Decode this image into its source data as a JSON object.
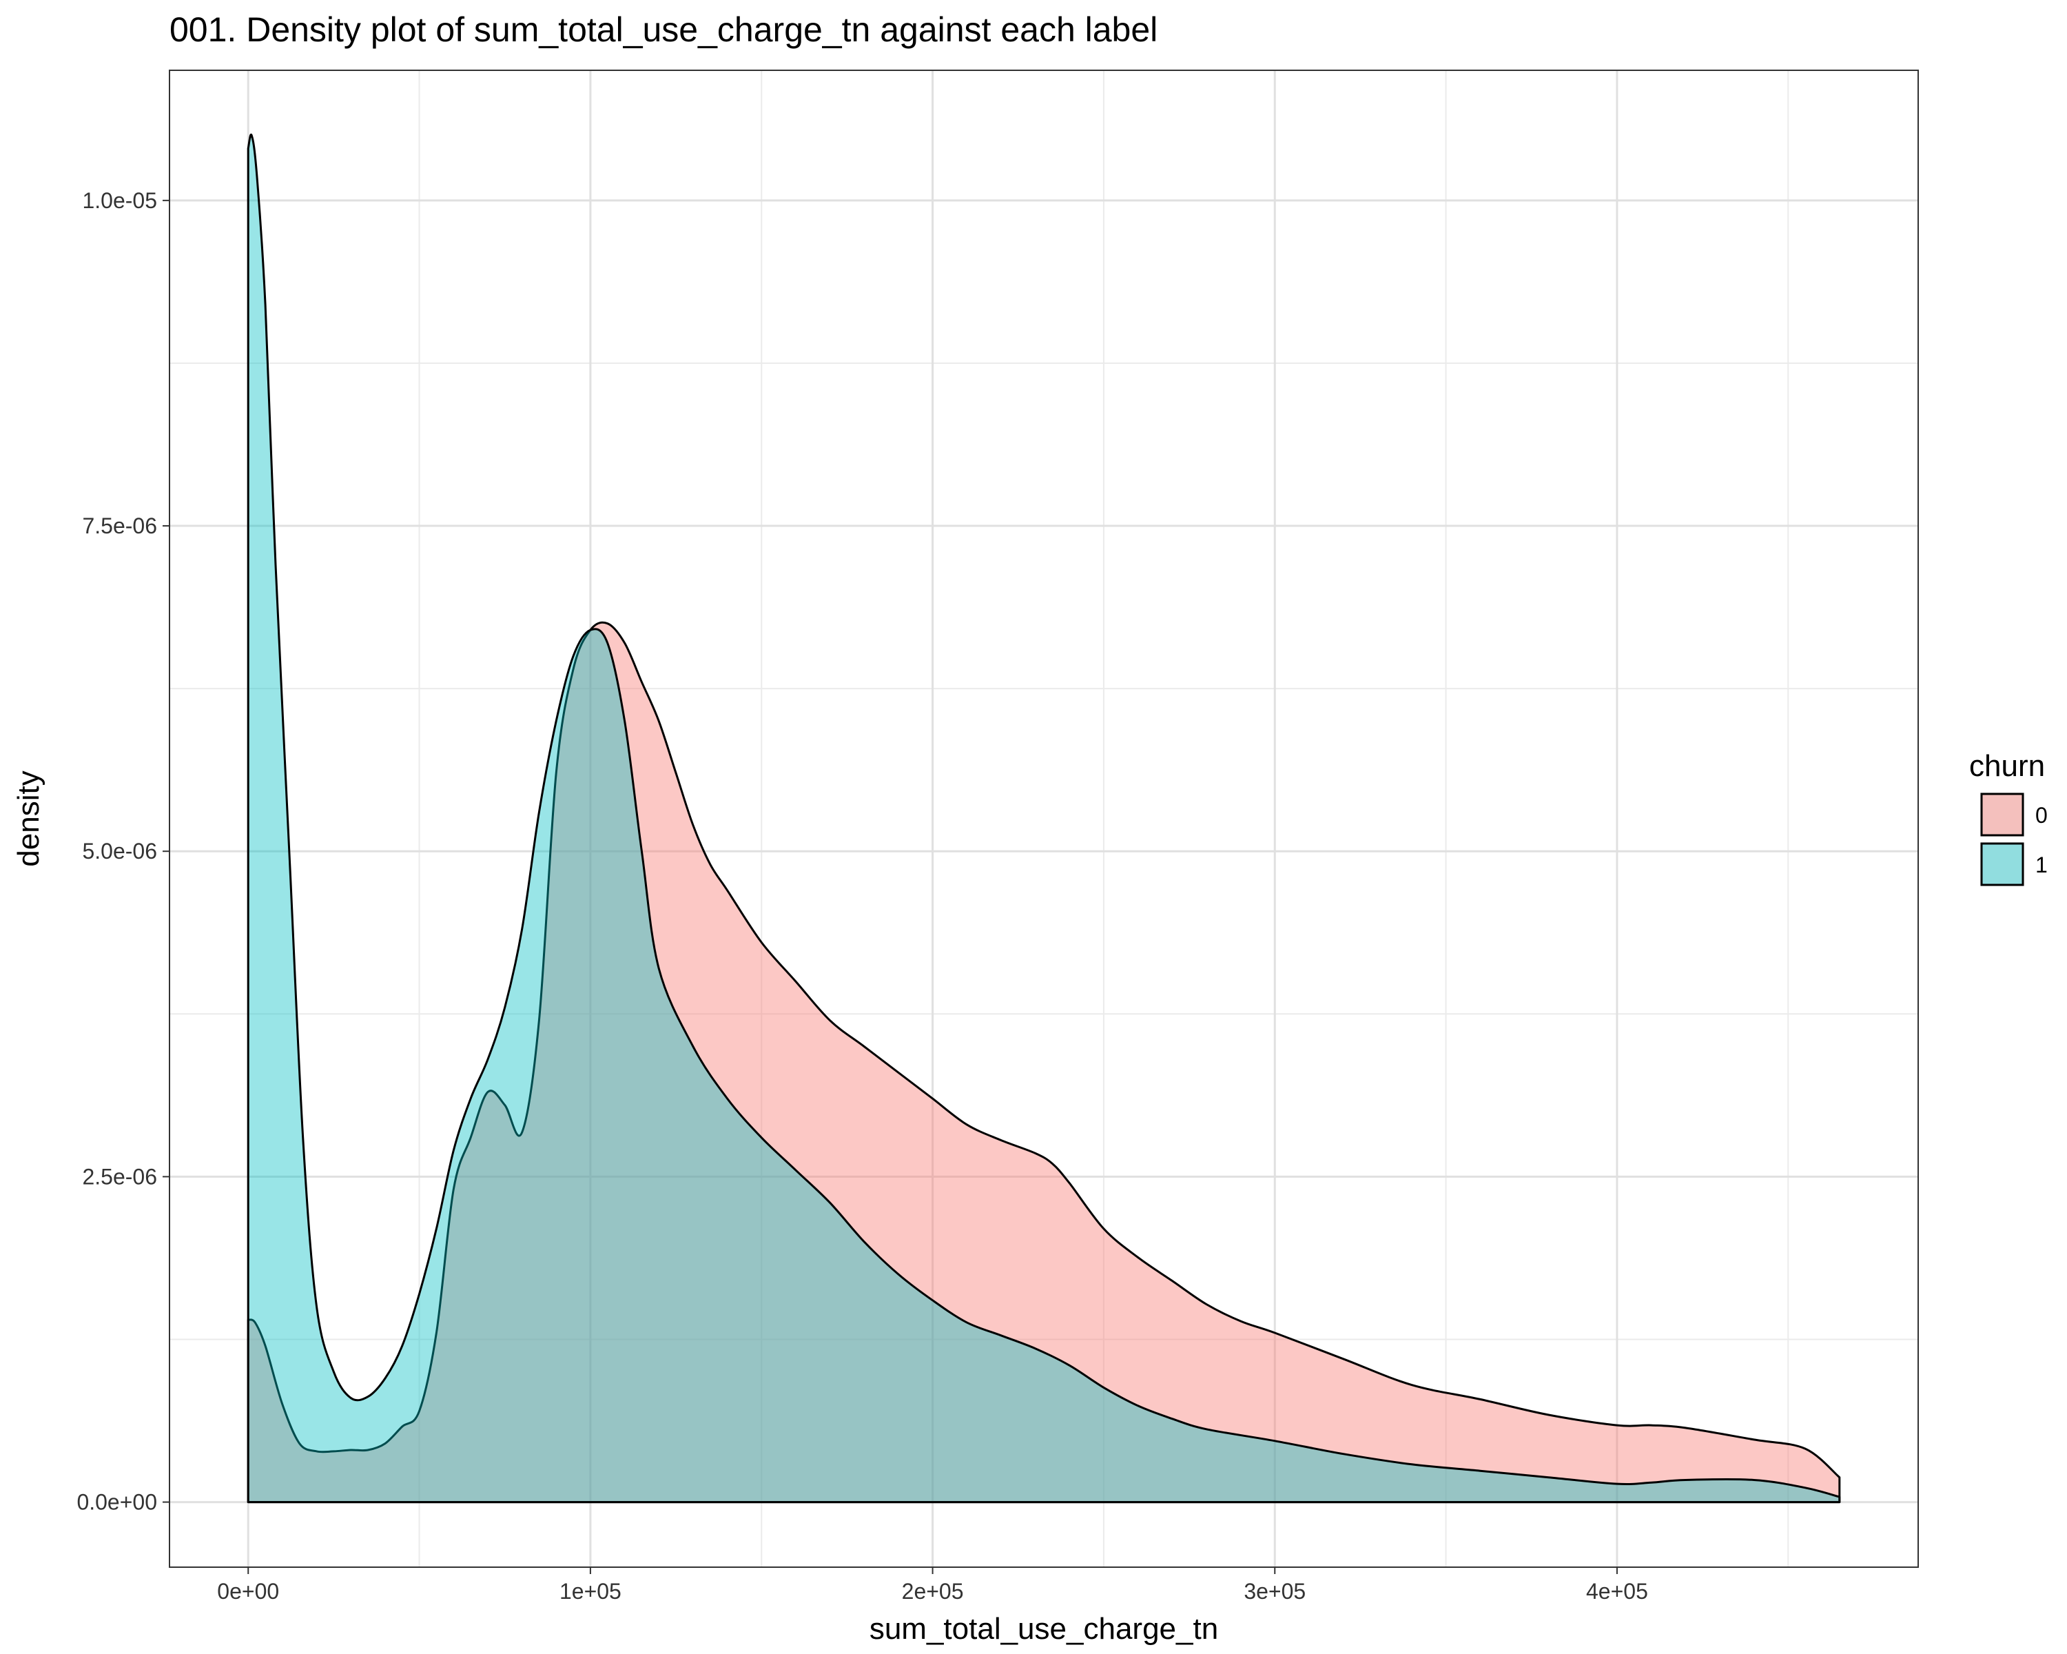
{
  "chart_data": {
    "type": "area",
    "title": "001. Density plot of sum_total_use_charge_tn against each label",
    "xlabel": "sum_total_use_charge_tn",
    "ylabel": "density",
    "xlim": [
      -23000,
      488000
    ],
    "ylim": [
      -5e-07,
      1.1e-05
    ],
    "x_ticks": [
      0,
      100000,
      200000,
      300000,
      400000
    ],
    "x_tick_labels": [
      "0e+00",
      "1e+05",
      "2e+05",
      "3e+05",
      "4e+05"
    ],
    "y_ticks": [
      0,
      2.5e-06,
      5e-06,
      7.5e-06,
      1e-05
    ],
    "y_tick_labels": [
      "0.0e+00",
      "2.5e-06",
      "5.0e-06",
      "7.5e-06",
      "1.0e-05"
    ],
    "grid": true,
    "legend": {
      "title": "churn",
      "position": "right"
    },
    "series": [
      {
        "name": "0",
        "color": "#F8766D",
        "x": [
          0,
          2000,
          5000,
          10000,
          15000,
          20000,
          25000,
          30000,
          35000,
          40000,
          45000,
          50000,
          55000,
          60000,
          65000,
          70000,
          75000,
          80000,
          85000,
          90000,
          95000,
          100000,
          105000,
          110000,
          115000,
          120000,
          125000,
          130000,
          135000,
          140000,
          150000,
          160000,
          170000,
          180000,
          190000,
          200000,
          210000,
          220000,
          230000,
          235000,
          240000,
          250000,
          260000,
          270000,
          280000,
          290000,
          300000,
          320000,
          340000,
          360000,
          380000,
          400000,
          410000,
          420000,
          440000,
          455000,
          465000
        ],
        "y": [
          1.4e-06,
          1.38e-06,
          1.2e-06,
          7.5e-07,
          4.5e-07,
          3.9e-07,
          3.9e-07,
          4e-07,
          4e-07,
          4.5e-07,
          5.8e-07,
          7e-07,
          1.3e-06,
          2.4e-06,
          2.8e-06,
          3.15e-06,
          3.05e-06,
          2.84e-06,
          3.7e-06,
          5.6e-06,
          6.4e-06,
          6.7e-06,
          6.75e-06,
          6.6e-06,
          6.3e-06,
          6e-06,
          5.6e-06,
          5.2e-06,
          4.9e-06,
          4.7e-06,
          4.3e-06,
          4e-06,
          3.7e-06,
          3.5e-06,
          3.3e-06,
          3.1e-06,
          2.9e-06,
          2.78e-06,
          2.68e-06,
          2.6e-06,
          2.45e-06,
          2.1e-06,
          1.88e-06,
          1.7e-06,
          1.52e-06,
          1.39e-06,
          1.3e-06,
          1.1e-06,
          9e-07,
          7.9e-07,
          6.7e-07,
          5.9e-07,
          5.9e-07,
          5.7e-07,
          4.8e-07,
          4.1e-07,
          1.9e-07
        ]
      },
      {
        "name": "1",
        "color": "#00BFC4",
        "x": [
          0,
          1000,
          2500,
          5000,
          8000,
          12000,
          16000,
          20000,
          25000,
          30000,
          35000,
          40000,
          45000,
          50000,
          55000,
          60000,
          65000,
          70000,
          75000,
          80000,
          85000,
          90000,
          95000,
          100000,
          105000,
          110000,
          115000,
          120000,
          130000,
          140000,
          150000,
          160000,
          170000,
          180000,
          190000,
          200000,
          210000,
          220000,
          230000,
          240000,
          250000,
          260000,
          270000,
          280000,
          300000,
          320000,
          340000,
          360000,
          380000,
          400000,
          410000,
          420000,
          440000,
          455000,
          465000
        ],
        "y": [
          1.04e-05,
          1.05e-05,
          1.02e-05,
          9.2e-06,
          7.2e-06,
          5e-06,
          2.8e-06,
          1.5e-06,
          1e-06,
          8e-07,
          8.1e-07,
          9.5e-07,
          1.2e-06,
          1.6e-06,
          2.1e-06,
          2.7e-06,
          3.1e-06,
          3.4e-06,
          3.8e-06,
          4.4e-06,
          5.3e-06,
          6e-06,
          6.5e-06,
          6.7e-06,
          6.6e-06,
          6e-06,
          5e-06,
          4.1e-06,
          3.5e-06,
          3.1e-06,
          2.8e-06,
          2.55e-06,
          2.3e-06,
          2e-06,
          1.75e-06,
          1.55e-06,
          1.38e-06,
          1.28e-06,
          1.18e-06,
          1.05e-06,
          8.8e-07,
          7.4e-07,
          6.4e-07,
          5.6e-07,
          4.7e-07,
          3.7e-07,
          2.9e-07,
          2.4e-07,
          1.9e-07,
          1.4e-07,
          1.5e-07,
          1.7e-07,
          1.7e-07,
          1.1e-07,
          4e-08
        ]
      }
    ]
  }
}
